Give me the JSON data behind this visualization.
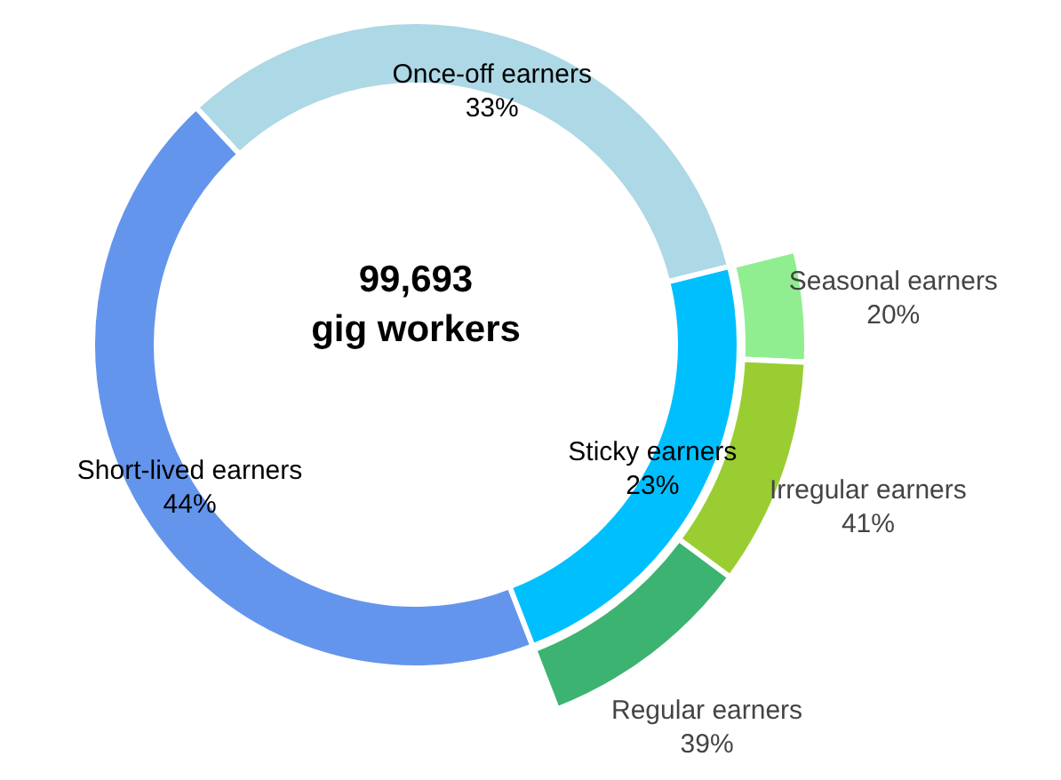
{
  "chart_data": {
    "type": "other",
    "title": "99,693\ngig workers",
    "categories": [
      "Once-off earners",
      "Short-lived earners",
      "Sticky earners",
      "Seasonal earners",
      "Irregular earners",
      "Regular earners"
    ],
    "series": [
      {
        "values": [
          33,
          44,
          23,
          null,
          null,
          null
        ],
        "colors": [
          "#add8e6",
          "#6495ed",
          "#00bfff",
          null,
          null,
          null
        ],
        "value_labels": [
          "33%",
          "44%",
          "23%",
          null,
          null,
          null
        ]
      },
      {
        "values": [
          null,
          null,
          null,
          20,
          41,
          39
        ],
        "colors": [
          null,
          null,
          null,
          "#90ee90",
          "#9acd32",
          "#3cb371"
        ],
        "value_labels": [
          null,
          null,
          null,
          "20%",
          "41%",
          "39%"
        ]
      }
    ]
  }
}
